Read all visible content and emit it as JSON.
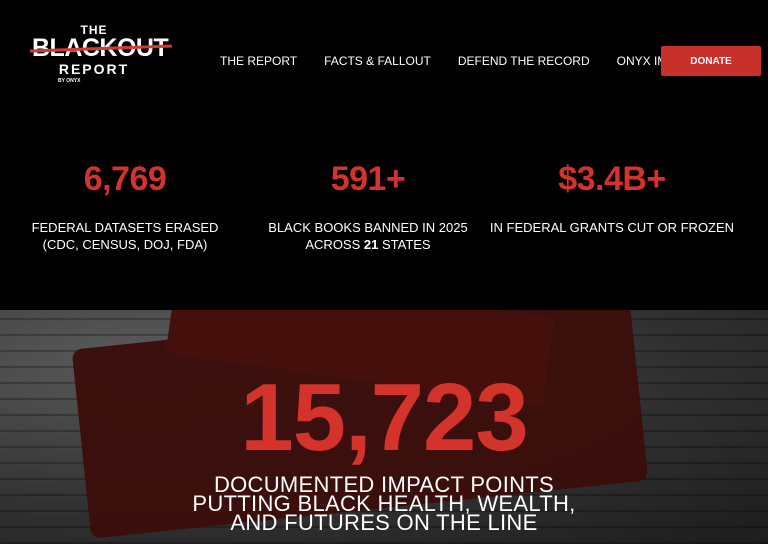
{
  "logo": {
    "line1": "THE",
    "line2": "BLACKOUT",
    "line3": "REPORT",
    "byline": "BY ONYX"
  },
  "nav": {
    "items": [
      "THE REPORT",
      "FACTS & FALLOUT",
      "DEFEND THE RECORD",
      "ONYX IMPACT"
    ],
    "donate": "DONATE"
  },
  "stats": [
    {
      "value": "6,769",
      "label1": "FEDERAL DATASETS ERASED",
      "label2": "(CDC, CENSUS, DOJ, FDA)"
    },
    {
      "value": "591+",
      "label1": "BLACK BOOKS BANNED IN 2025",
      "label2a": "ACROSS ",
      "label2b": "21",
      "label2c": " STATES"
    },
    {
      "value": "$3.4B+",
      "label1": "IN FEDERAL GRANTS CUT OR FROZEN"
    }
  ],
  "hero": {
    "number": "15,723",
    "line1": "DOCUMENTED IMPACT POINTS",
    "line2": "PUTTING BLACK HEALTH, WEALTH,",
    "line3": "AND FUTURES ON THE LINE"
  },
  "colors": {
    "accent": "#d4332b",
    "button": "#c8312b",
    "background": "#000000"
  }
}
